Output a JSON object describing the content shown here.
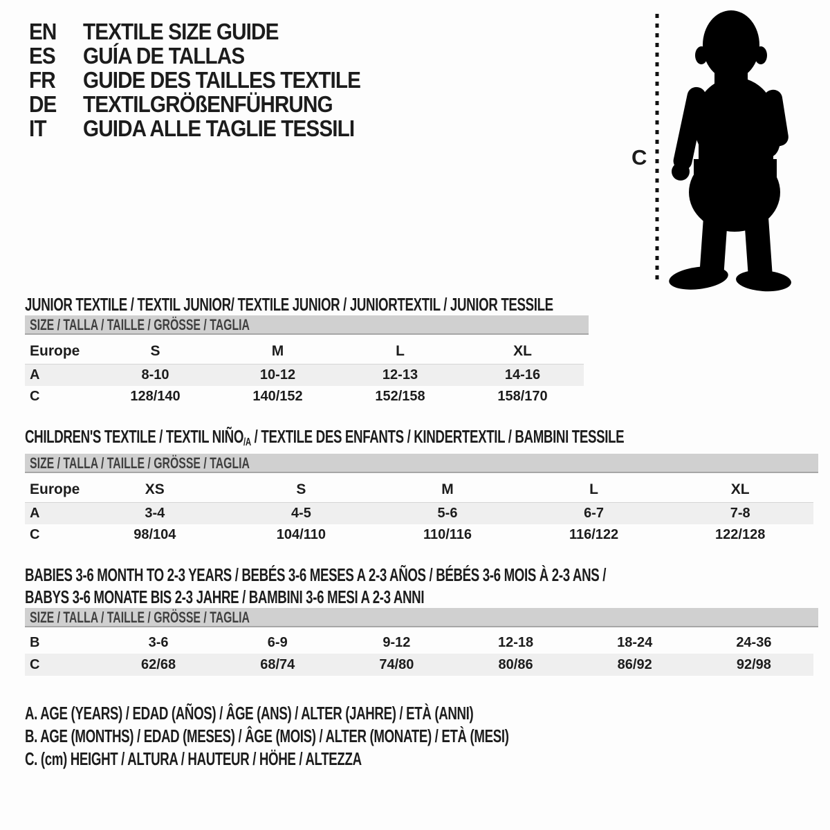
{
  "colors": {
    "page_bg": "#fdfdfd",
    "text": "#1c1c1c",
    "size_bar_bg": "#d0d0d0",
    "size_bar_border": "#a6a6a6",
    "row_shaded": "#efefef",
    "silhouette": "#000000"
  },
  "header": {
    "languages": [
      {
        "code": "EN",
        "label": "TEXTILE SIZE GUIDE"
      },
      {
        "code": "ES",
        "label": "GUÍA DE TALLAS"
      },
      {
        "code": "FR",
        "label": "GUIDE DES TAILLES TEXTILE"
      },
      {
        "code": "DE",
        "label": "TEXTILGRÖßENFÜHRUNG"
      },
      {
        "code": "IT",
        "label": "GUIDA ALLE TAGLIE TESSILI"
      }
    ]
  },
  "figure": {
    "label": "C"
  },
  "sections": [
    {
      "id": "junior",
      "title_lines": [
        [
          {
            "text": "JUNIOR TEXTILE / TEXTIL JUNIOR/ TEXTILE JUNIOR / JUNIORTEXTIL / JUNIOR TESSILE"
          }
        ]
      ],
      "size_header": "SIZE / TALLA / TAILLE / GRÖSSE / TAGLIA",
      "table": {
        "header_row": {
          "label": "Europe",
          "values": [
            "S",
            "M",
            "L",
            "XL"
          ]
        },
        "rows": [
          {
            "label": "A",
            "values": [
              "8-10",
              "10-12",
              "12-13",
              "14-16"
            ],
            "shaded": true
          },
          {
            "label": "C",
            "values": [
              "128/140",
              "140/152",
              "152/158",
              "158/170"
            ],
            "shaded": false
          }
        ]
      }
    },
    {
      "id": "children",
      "title_lines": [
        [
          {
            "text": "CHILDREN'S TEXTILE / TEXTIL NIÑO"
          },
          {
            "text": "/A",
            "sub": true
          },
          {
            "text": " / TEXTILE DES ENFANTS / KINDERTEXTIL / BAMBINI TESSILE"
          }
        ]
      ],
      "size_header": "SIZE / TALLA / TAILLE / GRÖSSE / TAGLIA",
      "table": {
        "header_row": {
          "label": "Europe",
          "values": [
            "XS",
            "S",
            "M",
            "L",
            "XL"
          ]
        },
        "rows": [
          {
            "label": "A",
            "values": [
              "3-4",
              "4-5",
              "5-6",
              "6-7",
              "7-8"
            ],
            "shaded": true
          },
          {
            "label": "C",
            "values": [
              "98/104",
              "104/110",
              "110/116",
              "116/122",
              "122/128"
            ],
            "shaded": false
          }
        ]
      }
    },
    {
      "id": "babies",
      "title_lines": [
        [
          {
            "text": "BABIES 3-6 MONTH TO 2-3 YEARS / BEBÉS 3-6 MESES A 2-3 AÑOS / BÉBÉS 3-6 MOIS À 2-3 ANS /"
          }
        ],
        [
          {
            "text": "BABYS 3-6 MONATE BIS 2-3 JAHRE / BAMBINI 3-6 MESI A 2-3 ANNI"
          }
        ]
      ],
      "size_header": "SIZE / TALLA / TAILLE / GRÖSSE / TAGLIA",
      "table": {
        "rows": [
          {
            "label": "B",
            "values": [
              "3-6",
              "6-9",
              "9-12",
              "12-18",
              "18-24",
              "24-36"
            ],
            "shaded": false
          },
          {
            "label": "C",
            "values": [
              "62/68",
              "68/74",
              "74/80",
              "80/86",
              "86/92",
              "92/98"
            ],
            "shaded": true
          }
        ]
      }
    }
  ],
  "footer": {
    "lines": [
      "A. AGE (YEARS) / EDAD (AÑOS) / ÂGE (ANS) / ALTER (JAHRE) / ETÀ (ANNI)",
      "B. AGE (MONTHS) / EDAD (MESES) / ÂGE (MOIS) / ALTER (MONATE) / ETÀ (MESI)",
      "C. (cm) HEIGHT / ALTURA / HAUTEUR / HÖHE / ALTEZZA"
    ]
  }
}
